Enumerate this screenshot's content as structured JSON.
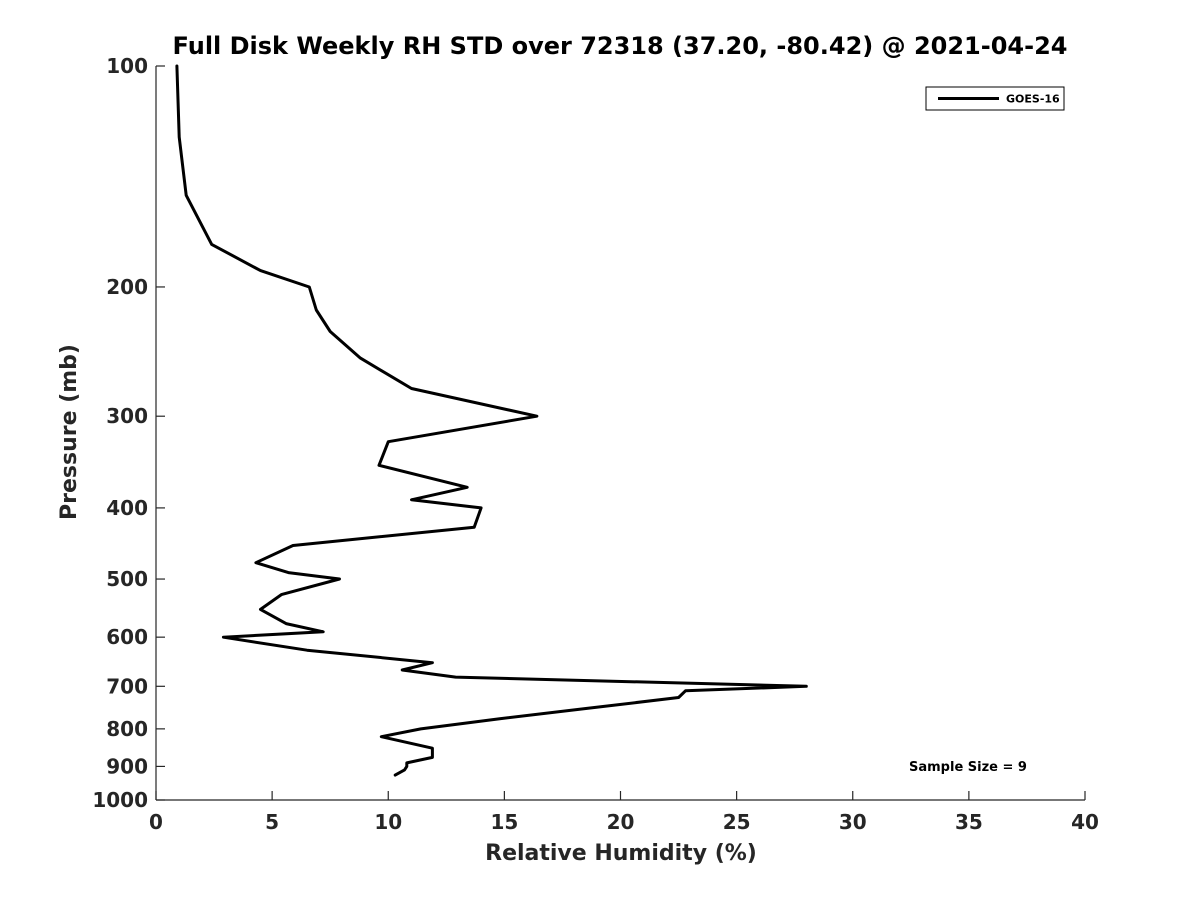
{
  "chart_data": {
    "type": "line",
    "title": "Full Disk Weekly RH STD over 72318 (37.20, -80.42) @ 2021-04-24",
    "xlabel": "Relative Humidity (%)",
    "ylabel": "Pressure (mb)",
    "xlim": [
      0,
      40
    ],
    "ylim": [
      1000,
      100
    ],
    "yscale": "log",
    "x_ticks": [
      "0",
      "5",
      "10",
      "15",
      "20",
      "25",
      "30",
      "35",
      "40"
    ],
    "y_ticks": [
      "100",
      "200",
      "300",
      "400",
      "500",
      "600",
      "700",
      "800",
      "900",
      "1000"
    ],
    "grid": false,
    "legend_position": "top-right",
    "annotation": "Sample Size = 9",
    "series": [
      {
        "name": "GOES-16",
        "color": "#000000",
        "points": [
          [
            0.9,
            100
          ],
          [
            1.0,
            125
          ],
          [
            1.3,
            150
          ],
          [
            2.4,
            175
          ],
          [
            4.5,
            190
          ],
          [
            6.6,
            200
          ],
          [
            6.9,
            215
          ],
          [
            7.5,
            230
          ],
          [
            8.8,
            250
          ],
          [
            11.0,
            275
          ],
          [
            16.4,
            300
          ],
          [
            10.0,
            325
          ],
          [
            9.6,
            350
          ],
          [
            13.4,
            375
          ],
          [
            11.0,
            390
          ],
          [
            14.0,
            400
          ],
          [
            13.7,
            425
          ],
          [
            5.9,
            450
          ],
          [
            4.3,
            475
          ],
          [
            5.7,
            490
          ],
          [
            7.9,
            500
          ],
          [
            5.4,
            525
          ],
          [
            4.5,
            550
          ],
          [
            5.6,
            575
          ],
          [
            7.2,
            590
          ],
          [
            2.9,
            600
          ],
          [
            6.5,
            625
          ],
          [
            11.9,
            650
          ],
          [
            10.6,
            665
          ],
          [
            12.9,
            680
          ],
          [
            28.0,
            700
          ],
          [
            22.8,
            710
          ],
          [
            22.5,
            725
          ],
          [
            18.6,
            750
          ],
          [
            14.8,
            775
          ],
          [
            11.4,
            800
          ],
          [
            9.7,
            820
          ],
          [
            11.9,
            850
          ],
          [
            11.9,
            875
          ],
          [
            10.8,
            890
          ],
          [
            10.8,
            900
          ],
          [
            10.7,
            910
          ],
          [
            10.3,
            925
          ]
        ]
      }
    ]
  }
}
